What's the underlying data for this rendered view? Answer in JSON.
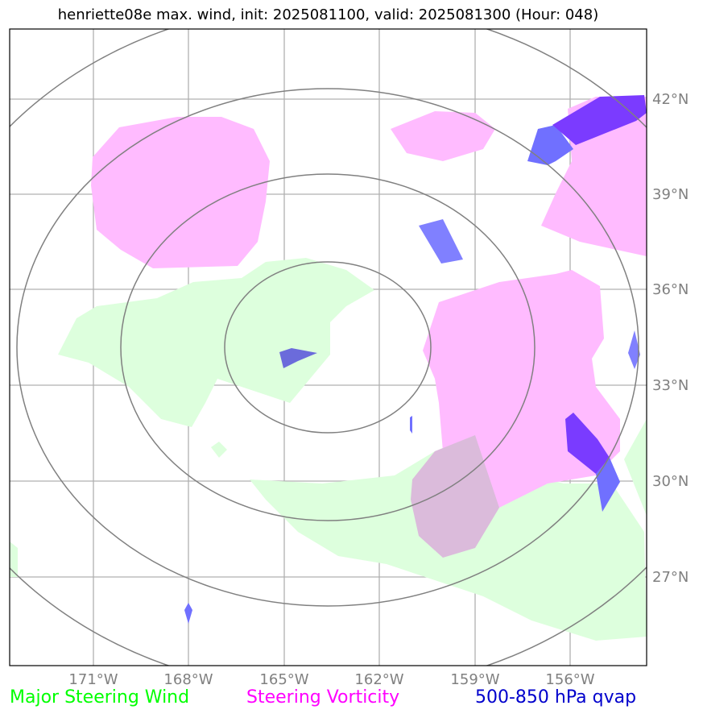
{
  "title": "henriette08e max. wind, init: 2025081100, valid: 2025081300 (Hour: 048)",
  "map": {
    "lat_ticks": [
      {
        "value": 42,
        "label": "42°N"
      },
      {
        "value": 39,
        "label": "39°N"
      },
      {
        "value": 36,
        "label": "36°N"
      },
      {
        "value": 33,
        "label": "33°N"
      },
      {
        "value": 30,
        "label": "30°N"
      },
      {
        "value": 27,
        "label": "27°N"
      }
    ],
    "lon_ticks": [
      {
        "value": -171,
        "label": "171°W"
      },
      {
        "value": -168,
        "label": "168°W"
      },
      {
        "value": -165,
        "label": "165°W"
      },
      {
        "value": -162,
        "label": "162°W"
      },
      {
        "value": -159,
        "label": "159°W"
      },
      {
        "value": -156,
        "label": "156°W"
      }
    ],
    "colors": {
      "steering_wind": "#ddffdd",
      "steering_vorticity": "#ffbbff",
      "qvap": "#5555ff",
      "grid": "#b0b0b0",
      "rings": "#808080"
    }
  },
  "legend": {
    "wind": {
      "label": "Major Steering Wind",
      "color": "#00ff00"
    },
    "vorticity": {
      "label": "Steering Vorticity",
      "color": "#ff00ff"
    },
    "qvap": {
      "label": "500-850 hPa qvap",
      "color": "#0000cc"
    }
  }
}
